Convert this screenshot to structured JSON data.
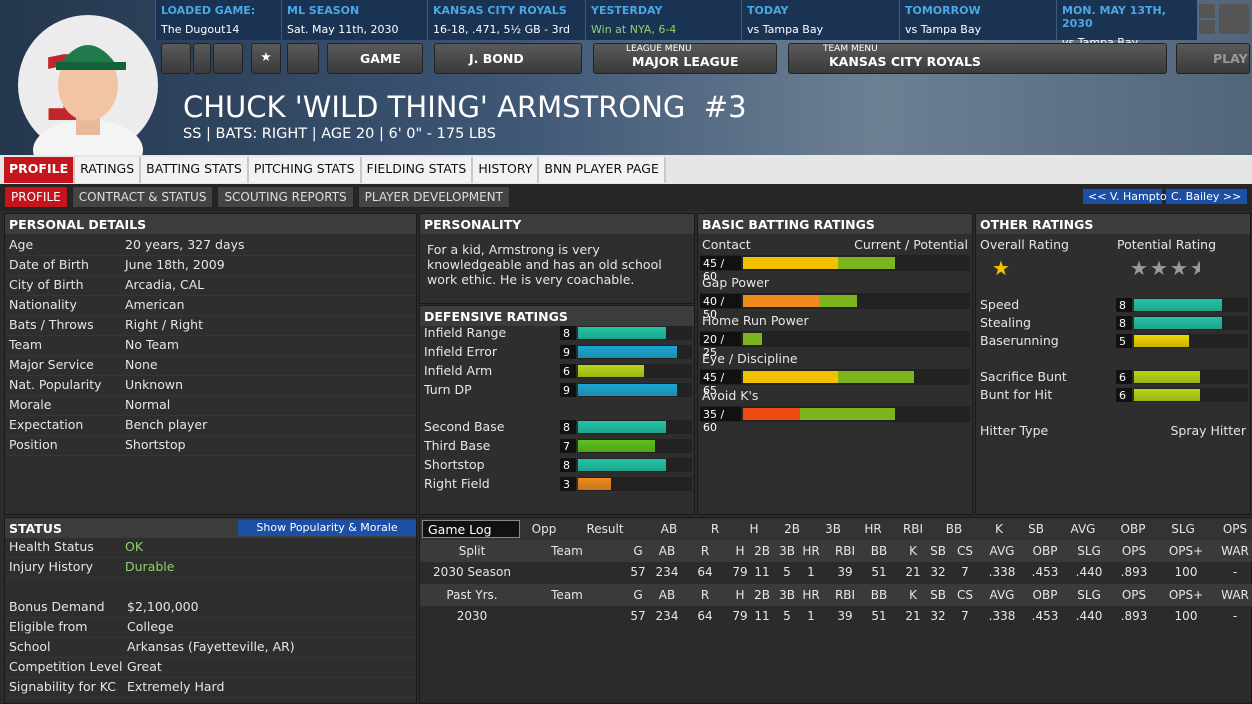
{
  "header": {
    "info": [
      {
        "label": "LOADED GAME:",
        "value": "The Dugout14"
      },
      {
        "label": "ML SEASON",
        "value": "Sat. May 11th, 2030"
      },
      {
        "label": "KANSAS CITY ROYALS",
        "value": "16-18, .471, 5½ GB - 3rd"
      },
      {
        "label": "YESTERDAY",
        "value": "Win at NYA, 6-4"
      },
      {
        "label": "TODAY",
        "value": "vs Tampa Bay"
      },
      {
        "label": "TOMORROW",
        "value": "vs Tampa Bay"
      },
      {
        "label": "MON. MAY 13TH, 2030",
        "value": "vs Tampa Bay"
      }
    ],
    "buttons": {
      "game": "GAME",
      "manager": "J. BOND",
      "league_caption": "LEAGUE MENU",
      "league": "MAJOR LEAGUE",
      "team_caption": "TEAM MENU",
      "team": "KANSAS CITY ROYALS",
      "play": "PLAY"
    },
    "player_name": "CHUCK 'WILD THING' ARMSTRONG  #3",
    "player_info": "SS | BATS: RIGHT | AGE 20 | 6' 0\" - 175 LBS"
  },
  "tabs": [
    "PROFILE",
    "RATINGS",
    "BATTING STATS",
    "PITCHING STATS",
    "FIELDING STATS",
    "HISTORY",
    "BNN PLAYER PAGE"
  ],
  "subtabs": [
    "PROFILE",
    "CONTRACT & STATUS",
    "SCOUTING REPORTS",
    "PLAYER DEVELOPMENT"
  ],
  "player_nav": [
    "<< V. Hampton",
    "C. Bailey >>"
  ],
  "personal_details": {
    "title": "PERSONAL DETAILS",
    "rows": [
      [
        "Age",
        "20 years, 327 days"
      ],
      [
        "Date of Birth",
        "June 18th, 2009"
      ],
      [
        "City of Birth",
        "Arcadia, CAL"
      ],
      [
        "Nationality",
        "American"
      ],
      [
        "Bats / Throws",
        "Right / Right"
      ],
      [
        "Team",
        "No Team"
      ],
      [
        "Major Service",
        "None"
      ],
      [
        "Nat. Popularity",
        "Unknown"
      ],
      [
        "Morale",
        "Normal"
      ],
      [
        "Expectation",
        "Bench player"
      ],
      [
        "Position",
        "Shortstop"
      ]
    ]
  },
  "status": {
    "title": "STATUS",
    "button": "Show Popularity & Morale",
    "rows_top": [
      [
        "Health Status",
        "OK"
      ],
      [
        "Injury History",
        "Durable"
      ]
    ],
    "rows_bottom": [
      [
        "Bonus Demand",
        "$2,100,000"
      ],
      [
        "Eligible from",
        "College"
      ],
      [
        "School",
        "Arkansas (Fayetteville, AR)"
      ],
      [
        "Competition Level",
        "Great"
      ],
      [
        "Signability for KC",
        "Extremely Hard"
      ]
    ]
  },
  "personality": {
    "title": "PERSONALITY",
    "text": "For a kid, Armstrong is very knowledgeable and has an old school work ethic. He is very coachable."
  },
  "defensive_ratings": {
    "title": "DEFENSIVE RATINGS",
    "xlim": [
      0,
      10
    ],
    "rows": [
      {
        "name": "Infield Range",
        "value": 8,
        "color": "#20c4a6"
      },
      {
        "name": "Infield Error",
        "value": 9,
        "color": "#1aa6d2"
      },
      {
        "name": "Infield Arm",
        "value": 6,
        "color": "#b5d814"
      },
      {
        "name": "Turn DP",
        "value": 9,
        "color": "#1aa6d2"
      },
      {
        "name": "Second Base",
        "value": 8,
        "color": "#20c4a6"
      },
      {
        "name": "Third Base",
        "value": 7,
        "color": "#5cc21c"
      },
      {
        "name": "Shortstop",
        "value": 8,
        "color": "#20c4a6"
      },
      {
        "name": "Right Field",
        "value": 3,
        "color": "#f08a1c"
      }
    ]
  },
  "batting_ratings": {
    "title": "BASIC BATTING RATINGS",
    "legend": "Current / Potential",
    "xlim": [
      20,
      80
    ],
    "potential_color": "#7db51e",
    "rows": [
      {
        "name": "Contact",
        "label": "45 / 60",
        "current": 45,
        "potential": 60,
        "color": "#f2c200"
      },
      {
        "name": "Gap Power",
        "label": "40 / 50",
        "current": 40,
        "potential": 50,
        "color": "#f08a1c"
      },
      {
        "name": "Home Run Power",
        "label": "20 / 25",
        "current": 20,
        "potential": 25,
        "color": "#c81818"
      },
      {
        "name": "Eye / Discipline",
        "label": "45 / 65",
        "current": 45,
        "potential": 65,
        "color": "#f2c200"
      },
      {
        "name": "Avoid K's",
        "label": "35 / 60",
        "current": 35,
        "potential": 60,
        "color": "#ec4a12"
      }
    ]
  },
  "other_ratings": {
    "title": "OTHER RATINGS",
    "overall_label": "Overall Rating",
    "overall_stars": 1,
    "potential_label": "Potential Rating",
    "potential_stars": 3.5,
    "xlim": [
      0,
      10
    ],
    "rows": [
      {
        "name": "Speed",
        "value": 8,
        "color": "#20c4a6"
      },
      {
        "name": "Stealing",
        "value": 8,
        "color": "#20c4a6"
      },
      {
        "name": "Baserunning",
        "value": 5,
        "color": "#f2d600"
      },
      {
        "name": "Sacrifice Bunt",
        "value": 6,
        "color": "#b5d814"
      },
      {
        "name": "Bunt for Hit",
        "value": 6,
        "color": "#b5d814"
      }
    ],
    "hitter_type_label": "Hitter Type",
    "hitter_type": "Spray Hitter"
  },
  "stats": {
    "dropdown": "Game Log",
    "game_log_headers": [
      "Opp",
      "Result",
      "AB",
      "R",
      "H",
      "2B",
      "3B",
      "HR",
      "RBI",
      "BB",
      "K",
      "SB",
      "AVG",
      "OBP",
      "SLG",
      "OPS"
    ],
    "split_headers": [
      "Split",
      "Team",
      "G",
      "AB",
      "R",
      "H",
      "2B",
      "3B",
      "HR",
      "RBI",
      "BB",
      "K",
      "SB",
      "CS",
      "AVG",
      "OBP",
      "SLG",
      "OPS",
      "OPS+",
      "WAR"
    ],
    "split_rows": [
      [
        "2030 Season",
        null,
        57,
        234,
        64,
        79,
        11,
        5,
        1,
        39,
        51,
        21,
        32,
        7,
        ".338",
        ".453",
        ".440",
        ".893",
        100,
        "-"
      ]
    ],
    "past_headers": [
      "Past Yrs.",
      "Team",
      "G",
      "AB",
      "R",
      "H",
      "2B",
      "3B",
      "HR",
      "RBI",
      "BB",
      "K",
      "SB",
      "CS",
      "AVG",
      "OBP",
      "SLG",
      "OPS",
      "OPS+",
      "WAR"
    ],
    "past_rows": [
      [
        "2030",
        null,
        57,
        234,
        64,
        79,
        11,
        5,
        1,
        39,
        51,
        21,
        32,
        7,
        ".338",
        ".453",
        ".440",
        ".893",
        100,
        "-"
      ]
    ]
  }
}
